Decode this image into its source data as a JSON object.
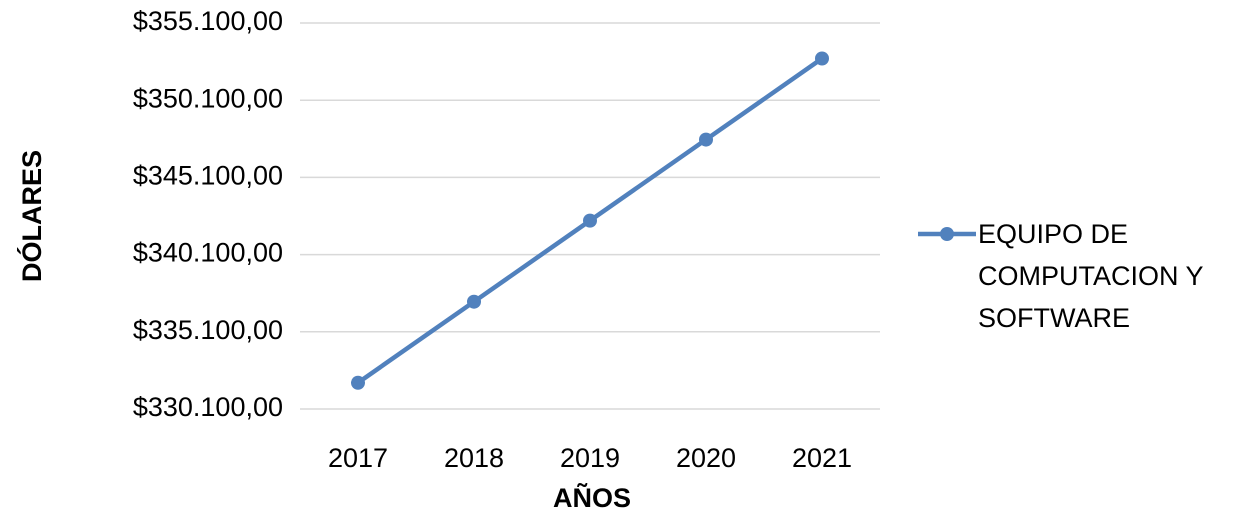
{
  "chart_data": {
    "type": "line",
    "x_label": "AÑOS",
    "y_label": "DÓLARES",
    "categories": [
      "2017",
      "2018",
      "2019",
      "2020",
      "2021"
    ],
    "series": [
      {
        "name": "EQUIPO DE COMPUTACION Y SOFTWARE",
        "color": "#5181bd",
        "values": [
          331800,
          337050,
          342300,
          347550,
          352800
        ]
      }
    ],
    "ylim": [
      330100,
      355100
    ],
    "yticks": [
      {
        "value": 330100,
        "label": "$330.100,00"
      },
      {
        "value": 335100,
        "label": "$335.100,00"
      },
      {
        "value": 340100,
        "label": "$340.100,00"
      },
      {
        "value": 345100,
        "label": "$345.100,00"
      },
      {
        "value": 350100,
        "label": "$350.100,00"
      },
      {
        "value": 355100,
        "label": "$355.100,00"
      }
    ],
    "grid": true,
    "legend": "right"
  }
}
